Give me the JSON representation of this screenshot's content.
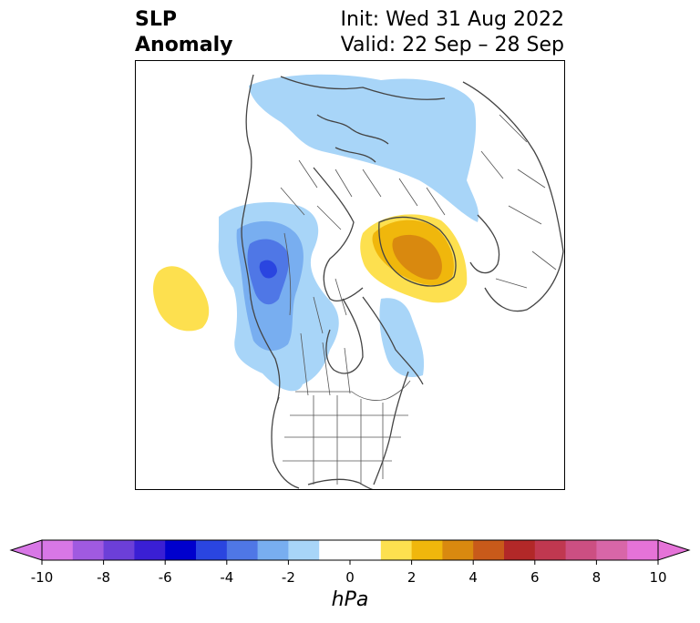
{
  "title": {
    "left_line1": "SLP",
    "left_line2": "Anomaly",
    "right_line1": "Init: Wed 31 Aug 2022",
    "right_line2": "Valid: 22 Sep – 28 Sep"
  },
  "map": {
    "projection": "polar-stereographic (North America / Arctic)",
    "features": [
      {
        "name": "negative-anomaly-alaska-bc",
        "level_hpa": -3,
        "color": "#4f77e6"
      },
      {
        "name": "negative-anomaly-arctic",
        "level_hpa": -1,
        "color": "#a8d5f8"
      },
      {
        "name": "positive-anomaly-greenland-sea",
        "level_hpa": 3,
        "color": "#d9890f"
      },
      {
        "name": "positive-anomaly-north-pacific",
        "level_hpa": 1,
        "color": "#fde04f"
      }
    ]
  },
  "colorbar": {
    "unit": "hPa",
    "ticks": [
      "-10",
      "-8",
      "-6",
      "-4",
      "-2",
      "0",
      "2",
      "4",
      "6",
      "8",
      "10"
    ],
    "min": -10,
    "max": 10,
    "colors": [
      "#d877e6",
      "#a05ae0",
      "#6c3fd8",
      "#3a1fd4",
      "#0000cd",
      "#2a45e0",
      "#4f77e6",
      "#78aef0",
      "#a8d5f8",
      "#ffffff",
      "#ffffff",
      "#fde04f",
      "#f0b70c",
      "#d9890f",
      "#c85a1a",
      "#b22828",
      "#c03850",
      "#cc4f82",
      "#d866a8",
      "#e573d8"
    ],
    "extend_low_color": "#d877e6",
    "extend_high_color": "#e573d8"
  }
}
